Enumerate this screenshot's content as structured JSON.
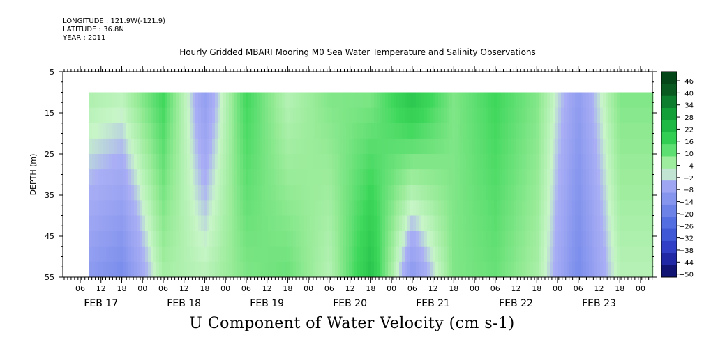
{
  "header": {
    "longitude": "LONGITUDE : 121.9W(-121.9)",
    "latitude": "LATITUDE : 36.8N",
    "year": "YEAR : 2011"
  },
  "chart_data": {
    "type": "heatmap",
    "title": "Hourly Gridded MBARI Mooring M0 Sea Water Temperature and Salinity Observations",
    "variable_label": "U Component of Water Velocity (cm s-1)",
    "ylabel": "DEPTH (m)",
    "ylim": [
      55,
      5
    ],
    "y_ticks": [
      5,
      15,
      25,
      35,
      45,
      55
    ],
    "x_hour_ticks": [
      "06",
      "12",
      "18",
      "00",
      "06",
      "12",
      "18",
      "00",
      "06",
      "12",
      "18",
      "00",
      "06",
      "12",
      "18",
      "00",
      "06",
      "12",
      "18",
      "00",
      "06",
      "12",
      "18",
      "00",
      "06",
      "12",
      "18",
      "00"
    ],
    "x_day_labels": [
      "FEB 17",
      "FEB 18",
      "FEB 19",
      "FEB 20",
      "FEB 21",
      "FEB 22",
      "FEB 23"
    ],
    "data_depth_range": [
      10,
      55
    ],
    "colorbar": {
      "levels": [
        -50,
        -44,
        -38,
        -32,
        -26,
        -20,
        -14,
        -8,
        -2,
        4,
        10,
        16,
        22,
        28,
        34,
        40,
        46
      ],
      "labels": [
        "46",
        "40",
        "34",
        "28",
        "22",
        "16",
        "10",
        "4",
        "−2",
        "−8",
        "−14",
        "−20",
        "−26",
        "−32",
        "−38",
        "−44",
        "−50"
      ]
    },
    "profile_columns": [
      {
        "day": "FEB 17",
        "hour": "06",
        "value_surface": 6,
        "value_bottom": -8
      },
      {
        "day": "FEB 17",
        "hour": "18",
        "value_surface": 4,
        "value_bottom": -14
      },
      {
        "day": "FEB 18",
        "hour": "06",
        "value_surface": 16,
        "value_bottom": 6
      },
      {
        "day": "FEB 18",
        "hour": "18",
        "value_surface": -8,
        "value_bottom": 4
      },
      {
        "day": "FEB 19",
        "hour": "06",
        "value_surface": 16,
        "value_bottom": 10
      },
      {
        "day": "FEB 19",
        "hour": "18",
        "value_surface": 4,
        "value_bottom": 12
      },
      {
        "day": "FEB 20",
        "hour": "06",
        "value_surface": 10,
        "value_bottom": 4
      },
      {
        "day": "FEB 20",
        "hour": "18",
        "value_surface": 10,
        "value_bottom": 22
      },
      {
        "day": "FEB 21",
        "hour": "06",
        "value_surface": 22,
        "value_bottom": -10
      },
      {
        "day": "FEB 21",
        "hour": "18",
        "value_surface": 10,
        "value_bottom": 10
      },
      {
        "day": "FEB 22",
        "hour": "06",
        "value_surface": 16,
        "value_bottom": 12
      },
      {
        "day": "FEB 22",
        "hour": "18",
        "value_surface": 10,
        "value_bottom": 6
      },
      {
        "day": "FEB 23",
        "hour": "06",
        "value_surface": -8,
        "value_bottom": -14
      },
      {
        "day": "FEB 23",
        "hour": "18",
        "value_surface": 10,
        "value_bottom": 4
      }
    ]
  },
  "colors": {
    "negative_dark": "#1a1a80",
    "negative_light": "#a8b0f0",
    "positive_light": "#a8f0a8",
    "positive_dark": "#0a5a22"
  }
}
